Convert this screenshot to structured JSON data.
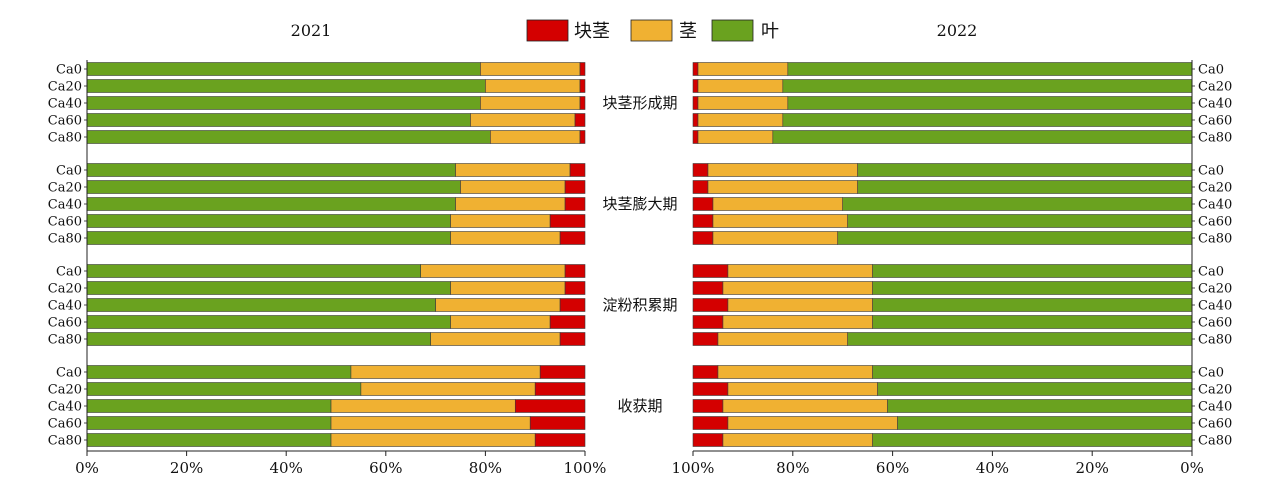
{
  "chart_data": {
    "type": "bar",
    "subtype": "horizontal-100%-stacked",
    "series_order": [
      "tuber",
      "stem",
      "leaf"
    ],
    "legend": [
      {
        "key": "tuber",
        "label": "块茎",
        "color": "#d40000"
      },
      {
        "key": "stem",
        "label": "茎",
        "color": "#f0b132"
      },
      {
        "key": "leaf",
        "label": "叶",
        "color": "#6aa21f"
      }
    ],
    "categories": [
      "Ca0",
      "Ca20",
      "Ca40",
      "Ca60",
      "Ca80"
    ],
    "stages": [
      "块茎形成期",
      "块茎膨大期",
      "淀粉积累期",
      "收获期"
    ],
    "x_ticks": {
      "left": [
        "0%",
        "20%",
        "40%",
        "60%",
        "80%",
        "100%"
      ],
      "right": [
        "100%",
        "80%",
        "60%",
        "40%",
        "20%",
        "0%"
      ]
    },
    "xlim": [
      0,
      100
    ],
    "panels": [
      {
        "year": "2021",
        "direction": "left-to-right",
        "groups": [
          {
            "stage": "块茎形成期",
            "rows": [
              {
                "category": "Ca0",
                "leaf": 79,
                "stem": 20,
                "tuber": 1
              },
              {
                "category": "Ca20",
                "leaf": 80,
                "stem": 19,
                "tuber": 1
              },
              {
                "category": "Ca40",
                "leaf": 79,
                "stem": 20,
                "tuber": 1
              },
              {
                "category": "Ca60",
                "leaf": 77,
                "stem": 21,
                "tuber": 2
              },
              {
                "category": "Ca80",
                "leaf": 81,
                "stem": 18,
                "tuber": 1
              }
            ]
          },
          {
            "stage": "块茎膨大期",
            "rows": [
              {
                "category": "Ca0",
                "leaf": 74,
                "stem": 23,
                "tuber": 3
              },
              {
                "category": "Ca20",
                "leaf": 75,
                "stem": 21,
                "tuber": 4
              },
              {
                "category": "Ca40",
                "leaf": 74,
                "stem": 22,
                "tuber": 4
              },
              {
                "category": "Ca60",
                "leaf": 73,
                "stem": 20,
                "tuber": 7
              },
              {
                "category": "Ca80",
                "leaf": 73,
                "stem": 22,
                "tuber": 5
              }
            ]
          },
          {
            "stage": "淀粉积累期",
            "rows": [
              {
                "category": "Ca0",
                "leaf": 67,
                "stem": 29,
                "tuber": 4
              },
              {
                "category": "Ca20",
                "leaf": 73,
                "stem": 23,
                "tuber": 4
              },
              {
                "category": "Ca40",
                "leaf": 70,
                "stem": 25,
                "tuber": 5
              },
              {
                "category": "Ca60",
                "leaf": 73,
                "stem": 20,
                "tuber": 7
              },
              {
                "category": "Ca80",
                "leaf": 69,
                "stem": 26,
                "tuber": 5
              }
            ]
          },
          {
            "stage": "收获期",
            "rows": [
              {
                "category": "Ca0",
                "leaf": 53,
                "stem": 38,
                "tuber": 9
              },
              {
                "category": "Ca20",
                "leaf": 55,
                "stem": 35,
                "tuber": 10
              },
              {
                "category": "Ca40",
                "leaf": 49,
                "stem": 37,
                "tuber": 14
              },
              {
                "category": "Ca60",
                "leaf": 49,
                "stem": 40,
                "tuber": 11
              },
              {
                "category": "Ca80",
                "leaf": 49,
                "stem": 41,
                "tuber": 10
              }
            ]
          }
        ]
      },
      {
        "year": "2022",
        "direction": "right-to-left",
        "groups": [
          {
            "stage": "块茎形成期",
            "rows": [
              {
                "category": "Ca0",
                "leaf": 81,
                "stem": 18,
                "tuber": 1
              },
              {
                "category": "Ca20",
                "leaf": 82,
                "stem": 17,
                "tuber": 1
              },
              {
                "category": "Ca40",
                "leaf": 81,
                "stem": 18,
                "tuber": 1
              },
              {
                "category": "Ca60",
                "leaf": 82,
                "stem": 17,
                "tuber": 1
              },
              {
                "category": "Ca80",
                "leaf": 84,
                "stem": 15,
                "tuber": 1
              }
            ]
          },
          {
            "stage": "块茎膨大期",
            "rows": [
              {
                "category": "Ca0",
                "leaf": 67,
                "stem": 30,
                "tuber": 3
              },
              {
                "category": "Ca20",
                "leaf": 67,
                "stem": 30,
                "tuber": 3
              },
              {
                "category": "Ca40",
                "leaf": 70,
                "stem": 26,
                "tuber": 4
              },
              {
                "category": "Ca60",
                "leaf": 69,
                "stem": 27,
                "tuber": 4
              },
              {
                "category": "Ca80",
                "leaf": 71,
                "stem": 25,
                "tuber": 4
              }
            ]
          },
          {
            "stage": "淀粉积累期",
            "rows": [
              {
                "category": "Ca0",
                "leaf": 64,
                "stem": 29,
                "tuber": 7
              },
              {
                "category": "Ca20",
                "leaf": 64,
                "stem": 30,
                "tuber": 6
              },
              {
                "category": "Ca40",
                "leaf": 64,
                "stem": 29,
                "tuber": 7
              },
              {
                "category": "Ca60",
                "leaf": 64,
                "stem": 30,
                "tuber": 6
              },
              {
                "category": "Ca80",
                "leaf": 69,
                "stem": 26,
                "tuber": 5
              }
            ]
          },
          {
            "stage": "收获期",
            "rows": [
              {
                "category": "Ca0",
                "leaf": 64,
                "stem": 31,
                "tuber": 5
              },
              {
                "category": "Ca20",
                "leaf": 63,
                "stem": 30,
                "tuber": 7
              },
              {
                "category": "Ca40",
                "leaf": 61,
                "stem": 33,
                "tuber": 6
              },
              {
                "category": "Ca60",
                "leaf": 59,
                "stem": 34,
                "tuber": 7
              },
              {
                "category": "Ca80",
                "leaf": 64,
                "stem": 30,
                "tuber": 6
              }
            ]
          }
        ]
      }
    ]
  }
}
